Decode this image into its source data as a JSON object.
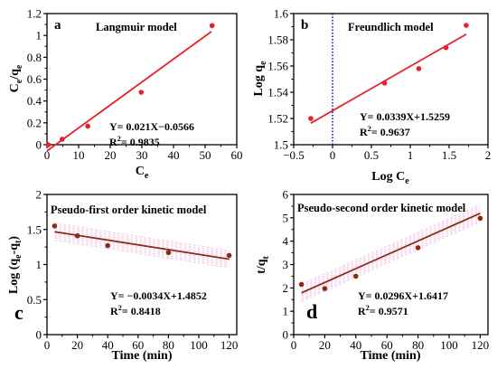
{
  "chart_data": [
    {
      "id": "a",
      "type": "scatter",
      "panel_label": "a",
      "title": "Langmuir model",
      "xlabel": "C",
      "xlabel_sub": "e",
      "ylabel": "C",
      "ylabel_sub": "e",
      "ylabel_suffix": "/q",
      "ylabel_suffix_sub": "e",
      "xlim": [
        0,
        60
      ],
      "ylim": [
        0,
        1.2
      ],
      "xticks": [
        "0",
        "10",
        "20",
        "30",
        "40",
        "50",
        "60"
      ],
      "yticks": [
        "0",
        "0.2",
        "0.4",
        "0.6",
        "0.8",
        "1",
        "1.2"
      ],
      "points": [
        {
          "x": 0.4,
          "y": 0.0
        },
        {
          "x": 4.8,
          "y": 0.05
        },
        {
          "x": 12.9,
          "y": 0.17
        },
        {
          "x": 29.8,
          "y": 0.48
        },
        {
          "x": 52.2,
          "y": 1.09
        }
      ],
      "fit": {
        "slope": 0.021,
        "intercept": -0.0566,
        "x_range": [
          0,
          52
        ]
      },
      "equation": "Y= 0.021X−0.0566",
      "r2_label": "R",
      "r2_sup": "2",
      "r2_value": "= 0.9835",
      "colors": {
        "points": "#e8202a",
        "fit": "#e8202a",
        "band": "none"
      },
      "grid": false
    },
    {
      "id": "b",
      "type": "scatter",
      "panel_label": "b",
      "title": "Freundlich model",
      "xlabel": "Log C",
      "xlabel_sub": "e",
      "ylabel": "Log q",
      "ylabel_sub": "e",
      "xlim": [
        -0.5,
        2.0
      ],
      "ylim": [
        1.5,
        1.6
      ],
      "xticks": [
        "−0.5",
        "0",
        "0.5",
        "1",
        "1.5",
        "2"
      ],
      "yticks": [
        "1.5",
        "1.52",
        "1.54",
        "1.56",
        "1.58",
        "1.6"
      ],
      "points": [
        {
          "x": -0.28,
          "y": 1.52
        },
        {
          "x": 0.67,
          "y": 1.547
        },
        {
          "x": 1.11,
          "y": 1.558
        },
        {
          "x": 1.46,
          "y": 1.574
        },
        {
          "x": 1.72,
          "y": 1.591
        }
      ],
      "fit": {
        "slope": 0.0339,
        "intercept": 1.5259,
        "x_range": [
          -0.28,
          1.72
        ]
      },
      "reference_line": {
        "x": 0,
        "color": "#1515c8",
        "style": "dotted"
      },
      "equation": "Y= 0.0339X+1.5259",
      "r2_label": "R",
      "r2_sup": "2",
      "r2_value": "= 0.9637",
      "colors": {
        "points": "#e8202a",
        "fit": "#e8202a",
        "band": "none"
      },
      "grid": false
    },
    {
      "id": "c",
      "type": "scatter",
      "panel_label": "c",
      "title": "Pseudo-first order kinetic model",
      "xlabel": "Time (min)",
      "ylabel": "Log (q",
      "ylabel_sub": "e",
      "ylabel_suffix": "-q",
      "ylabel_suffix_sub": "t",
      "ylabel_close": ")",
      "xlim": [
        0,
        125
      ],
      "ylim": [
        0,
        2
      ],
      "xticks": [
        "0",
        "20",
        "40",
        "60",
        "80",
        "100",
        "120"
      ],
      "yticks": [
        "0",
        "0.5",
        "1",
        "1.5",
        "2"
      ],
      "points": [
        {
          "x": 5,
          "y": 1.55
        },
        {
          "x": 20,
          "y": 1.41
        },
        {
          "x": 40,
          "y": 1.27
        },
        {
          "x": 80,
          "y": 1.17
        },
        {
          "x": 120,
          "y": 1.13
        }
      ],
      "fit": {
        "slope": -0.0034,
        "intercept": 1.4852,
        "x_range": [
          5,
          120
        ]
      },
      "equation": "Y= −0.0034X+1.4852",
      "r2_label": "R",
      "r2_sup": "2",
      "r2_value": "= 0.8418",
      "colors": {
        "points": "#8b2a14",
        "fit": "#8b2a14",
        "band": "#f2c6e6"
      },
      "grid": false
    },
    {
      "id": "d",
      "type": "scatter",
      "panel_label": "d",
      "title": "Pseudo-second order kinetic model",
      "xlabel": "Time (min)",
      "ylabel": "t/q",
      "ylabel_sub": "t",
      "xlim": [
        0,
        125
      ],
      "ylim": [
        0,
        6
      ],
      "xticks": [
        "0",
        "20",
        "40",
        "60",
        "80",
        "100",
        "120"
      ],
      "yticks": [
        "0",
        "1",
        "2",
        "3",
        "4",
        "5",
        "6"
      ],
      "points": [
        {
          "x": 5,
          "y": 2.15
        },
        {
          "x": 20,
          "y": 1.97
        },
        {
          "x": 40,
          "y": 2.5
        },
        {
          "x": 80,
          "y": 3.72
        },
        {
          "x": 120,
          "y": 4.98
        }
      ],
      "fit": {
        "slope": 0.0296,
        "intercept": 1.6417,
        "x_range": [
          5,
          120
        ]
      },
      "equation": "Y= 0.0296X+1.6417",
      "r2_label": "R",
      "r2_sup": "2",
      "r2_value": "= 0.9571",
      "colors": {
        "points": "#8b2a14",
        "fit": "#8b2a14",
        "band": "#f2c6e6"
      },
      "grid": false
    }
  ]
}
